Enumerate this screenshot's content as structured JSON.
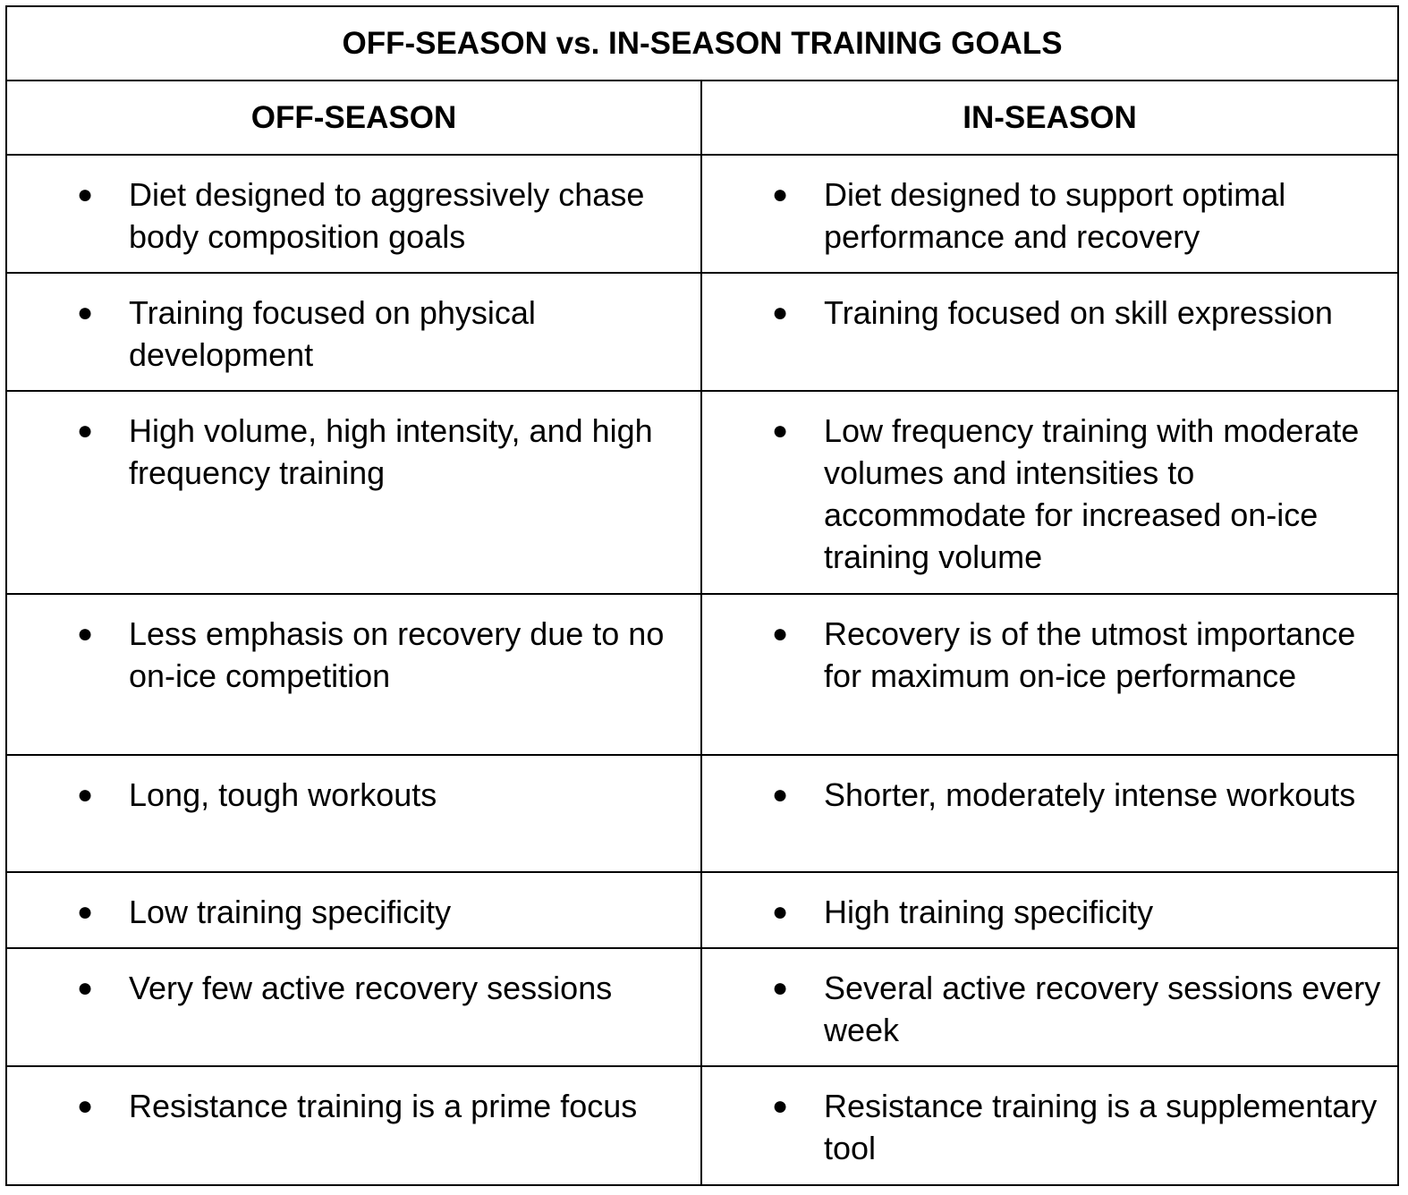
{
  "title": "OFF-SEASON vs. IN-SEASON TRAINING GOALS",
  "columns": [
    "OFF-SEASON",
    "IN-SEASON"
  ],
  "rows": [
    [
      "Diet designed to aggressively chase body composition goals",
      "Diet designed to support optimal performance and recovery"
    ],
    [
      "Training focused on physical development",
      "Training focused on skill expression"
    ],
    [
      "High volume, high intensity, and high frequency training",
      "Low frequency training with moderate volumes and intensities to accommodate for increased on-ice training volume"
    ],
    [
      "Less emphasis on recovery due to no on-ice competition",
      "Recovery is of the utmost importance for maximum on-ice performance"
    ],
    [
      "Long, tough workouts",
      "Shorter, moderately intense workouts"
    ],
    [
      "Low training specificity",
      "High training specificity"
    ],
    [
      "Very few active recovery sessions",
      "Several active recovery sessions every week"
    ],
    [
      "Resistance training is a prime focus",
      "Resistance training is a supplementary tool"
    ]
  ],
  "bullet_icon": "filled-circle-bullet"
}
